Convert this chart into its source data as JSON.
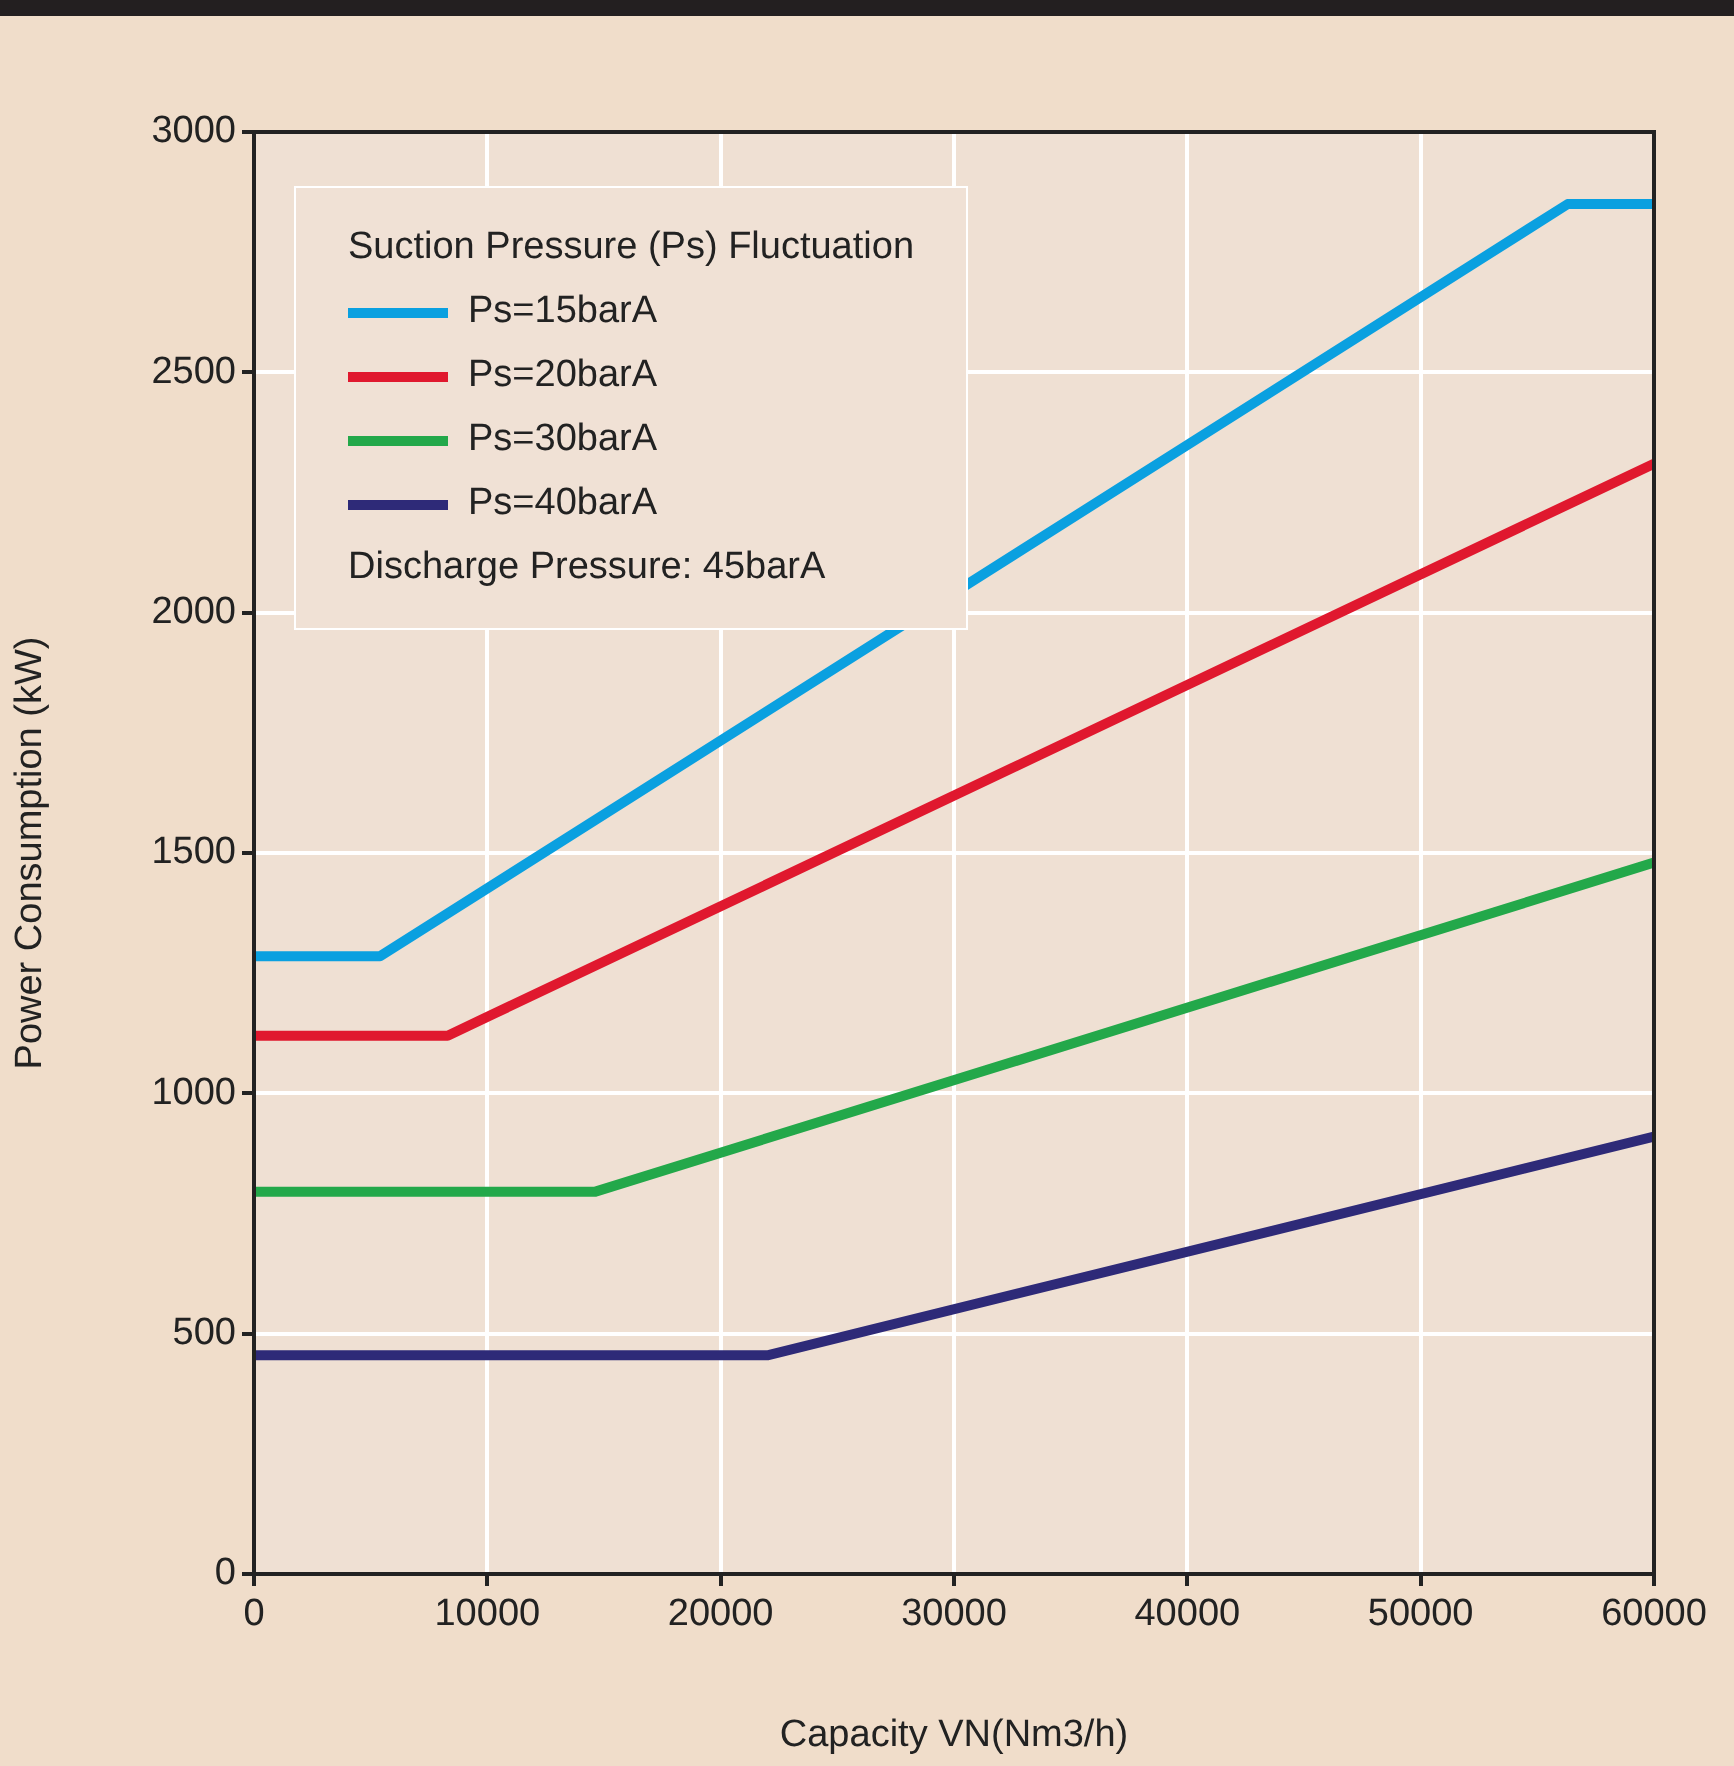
{
  "chart_data": {
    "type": "line",
    "xlabel": "Capacity VN(Nm3/h)",
    "ylabel": "Power Consumption (kW)",
    "legend_title": "Suction Pressure (Ps) Fluctuation",
    "annotations": [
      "Discharge Pressure: 45barA"
    ],
    "xlim": [
      0,
      60000
    ],
    "xticks": [
      0,
      10000,
      20000,
      30000,
      40000,
      50000,
      60000
    ],
    "ylim": [
      0,
      3000
    ],
    "yticks": [
      0,
      500,
      1000,
      1500,
      2000,
      2500,
      3000
    ],
    "grid": true,
    "legend": "top left",
    "marker": "none",
    "line_style": "solid",
    "series": [
      {
        "name": "Ps=15barA",
        "color": "#0aa0e0",
        "x": [
          0,
          5400,
          56300,
          60000
        ],
        "values": [
          1285,
          1285,
          2850,
          2850
        ]
      },
      {
        "name": "Ps=20barA",
        "color": "#e0182e",
        "x": [
          0,
          8300,
          60000
        ],
        "values": [
          1120,
          1120,
          2310
        ]
      },
      {
        "name": "Ps=30barA",
        "color": "#23a84a",
        "x": [
          0,
          14600,
          60000
        ],
        "values": [
          795,
          795,
          1480
        ]
      },
      {
        "name": "Ps=40barA",
        "color": "#2e2a78",
        "x": [
          0,
          22000,
          60000
        ],
        "values": [
          455,
          455,
          910
        ]
      }
    ]
  }
}
